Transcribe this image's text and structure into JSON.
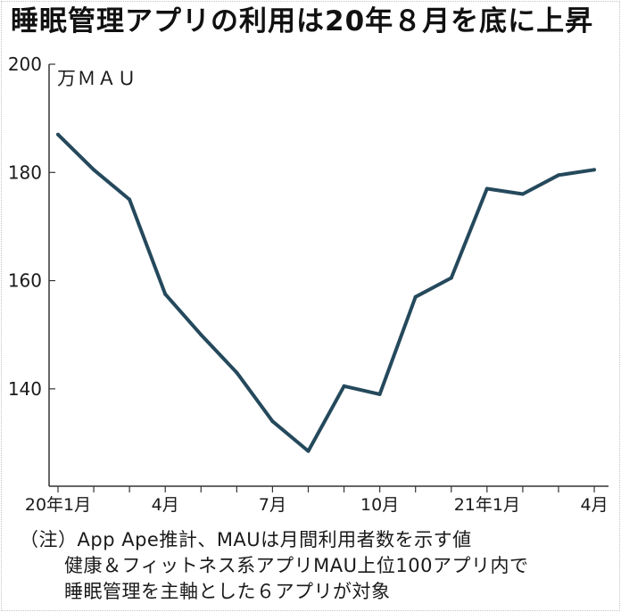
{
  "chart_data": {
    "type": "line",
    "title": "睡眠管理アプリの利用は20年８月を底に上昇",
    "ylabel": "万ＭＡＵ",
    "x": [
      "2020-01",
      "2020-02",
      "2020-03",
      "2020-04",
      "2020-05",
      "2020-06",
      "2020-07",
      "2020-08",
      "2020-09",
      "2020-10",
      "2020-11",
      "2020-12",
      "2021-01",
      "2021-02",
      "2021-03",
      "2021-04"
    ],
    "series": [
      {
        "values": [
          187,
          180.5,
          175,
          157.5,
          150,
          143,
          134,
          128.5,
          140.5,
          139,
          157,
          160.5,
          177,
          176,
          179.5,
          180.5
        ]
      }
    ],
    "ylim": [
      122,
      200
    ],
    "yticks": [
      140,
      160,
      180,
      200
    ],
    "xticks": [
      {
        "at": "2020-01",
        "label": "20年1月"
      },
      {
        "at": "2020-04",
        "label": "4月"
      },
      {
        "at": "2020-07",
        "label": "7月"
      },
      {
        "at": "2020-10",
        "label": "10月"
      },
      {
        "at": "2021-01",
        "label": "21年1月"
      },
      {
        "at": "2021-04",
        "label": "4月"
      }
    ],
    "grid": false,
    "line_color": "#25495c"
  },
  "notes": [
    "（注）App Ape推計、MAUは月間利用者数を示す値",
    "健康＆フィットネス系アプリMAU上位100アプリ内で",
    "睡眠管理を主軸とした６アプリが対象"
  ]
}
